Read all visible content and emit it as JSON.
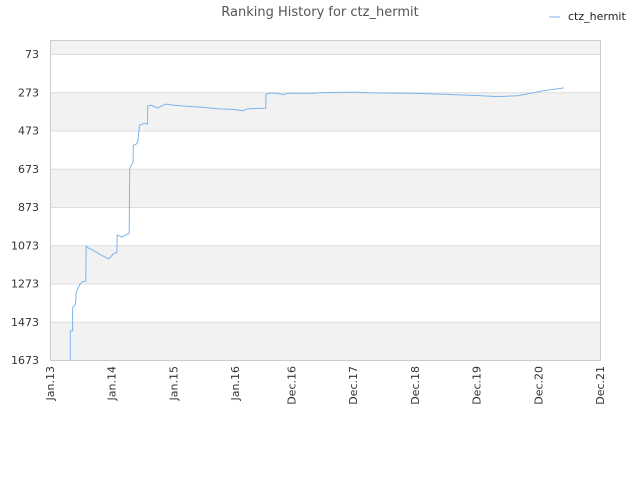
{
  "chart_data": {
    "type": "line",
    "title": "Ranking History for ctz_hermit",
    "xlabel": "",
    "ylabel": "",
    "ylim": [
      73,
      1673
    ],
    "y_inverted": true,
    "y_ticks": [
      73,
      273,
      473,
      673,
      873,
      1073,
      1273,
      1473,
      1673
    ],
    "x_ticks": [
      {
        "label": "Jan.13",
        "date": "2013-01-01"
      },
      {
        "label": "Jan.14",
        "date": "2014-01-01"
      },
      {
        "label": "Jan.15",
        "date": "2015-01-01"
      },
      {
        "label": "Jan.16",
        "date": "2016-01-01"
      },
      {
        "label": "Dec.16",
        "date": "2016-12-01"
      },
      {
        "label": "Dec.17",
        "date": "2017-12-01"
      },
      {
        "label": "Dec.18",
        "date": "2018-12-01"
      },
      {
        "label": "Dec.19",
        "date": "2019-12-01"
      },
      {
        "label": "Dec.20",
        "date": "2020-12-01"
      },
      {
        "label": "Dec.21",
        "date": "2021-12-01"
      }
    ],
    "grid": true,
    "legend_position": "top-right",
    "line_color": "#7cb5ec",
    "band_color": "#f2f2f2",
    "series": [
      {
        "name": "ctz_hermit",
        "points": [
          [
            "2013-05-01",
            1673
          ],
          [
            "2013-05-01",
            1520
          ],
          [
            "2013-05-15",
            1520
          ],
          [
            "2013-05-15",
            1400
          ],
          [
            "2013-06-01",
            1380
          ],
          [
            "2013-06-05",
            1320
          ],
          [
            "2013-06-15",
            1300
          ],
          [
            "2013-06-25",
            1280
          ],
          [
            "2013-07-10",
            1265
          ],
          [
            "2013-08-01",
            1260
          ],
          [
            "2013-08-03",
            1078
          ],
          [
            "2013-08-10",
            1085
          ],
          [
            "2013-09-15",
            1100
          ],
          [
            "2013-11-01",
            1125
          ],
          [
            "2013-12-15",
            1145
          ],
          [
            "2014-01-10",
            1118
          ],
          [
            "2014-02-01",
            1110
          ],
          [
            "2014-02-03",
            1020
          ],
          [
            "2014-03-01",
            1030
          ],
          [
            "2014-03-25",
            1020
          ],
          [
            "2014-04-15",
            1010
          ],
          [
            "2014-04-18",
            670
          ],
          [
            "2014-05-01",
            650
          ],
          [
            "2014-05-08",
            640
          ],
          [
            "2014-05-10",
            550
          ],
          [
            "2014-05-25",
            545
          ],
          [
            "2014-06-05",
            530
          ],
          [
            "2014-06-15",
            445
          ],
          [
            "2014-07-01",
            440
          ],
          [
            "2014-07-15",
            435
          ],
          [
            "2014-08-01",
            440
          ],
          [
            "2014-08-03",
            345
          ],
          [
            "2014-08-20",
            340
          ],
          [
            "2014-10-01",
            355
          ],
          [
            "2014-11-15",
            335
          ],
          [
            "2015-01-01",
            340
          ],
          [
            "2015-03-01",
            345
          ],
          [
            "2015-06-01",
            350
          ],
          [
            "2015-10-01",
            360
          ],
          [
            "2016-01-01",
            363
          ],
          [
            "2016-02-15",
            370
          ],
          [
            "2016-03-15",
            360
          ],
          [
            "2016-05-01",
            358
          ],
          [
            "2016-07-01",
            357
          ],
          [
            "2016-07-03",
            283
          ],
          [
            "2016-08-01",
            277
          ],
          [
            "2016-09-15",
            280
          ],
          [
            "2016-10-15",
            285
          ],
          [
            "2016-11-15",
            278
          ],
          [
            "2017-04-01",
            279
          ],
          [
            "2017-06-01",
            275
          ],
          [
            "2017-10-01",
            274
          ],
          [
            "2017-12-15",
            272
          ],
          [
            "2018-03-01",
            276
          ],
          [
            "2018-06-01",
            277
          ],
          [
            "2018-12-01",
            279
          ],
          [
            "2019-06-01",
            284
          ],
          [
            "2019-12-01",
            290
          ],
          [
            "2020-04-01",
            296
          ],
          [
            "2020-08-01",
            291
          ],
          [
            "2021-01-01",
            265
          ],
          [
            "2021-03-01",
            258
          ],
          [
            "2021-05-01",
            250
          ]
        ]
      }
    ]
  }
}
